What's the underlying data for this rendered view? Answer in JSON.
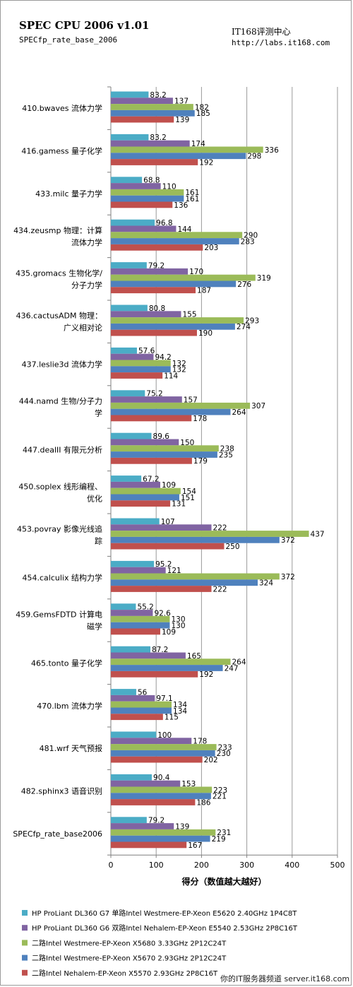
{
  "header": {
    "title": "SPEC CPU 2006 v1.01",
    "subtitle": "SPECfp_rate_base_2006",
    "source_line1": "IT168评测中心",
    "source_line2": "http://labs.it168.com"
  },
  "watermark": "你的IT服务器频道 server.it168.com",
  "colors": {
    "series": [
      "#4bacc6",
      "#8064a2",
      "#9bbb59",
      "#4f81bd",
      "#c0504d"
    ],
    "grid": "#9a9a9a",
    "axis": "#7f7f7f"
  },
  "chart_data": {
    "type": "bar",
    "orientation": "horizontal",
    "xlabel": "得分（数值越大越好）",
    "xlim": [
      0,
      500
    ],
    "xticks": [
      0,
      100,
      200,
      300,
      400,
      500
    ],
    "grid": true,
    "legend_position": "bottom",
    "categories": [
      "410.bwaves 流体力学",
      "416.gamess 量子化学",
      "433.milc 量子力学",
      "434.zeusmp 物理：计算流体力学",
      "435.gromacs 生物化学/分子力学",
      "436.cactusADM 物理：广义相对论",
      "437.leslie3d 流体力学",
      "444.namd 生物/分子力学",
      "447.dealII 有限元分析",
      "450.soplex 线形编程、优化",
      "453.povray 影像光线追踪",
      "454.calculix 结构力学",
      "459.GemsFDTD 计算电磁学",
      "465.tonto 量子化学",
      "470.lbm 流体力学",
      "481.wrf 天气预报",
      "482.sphinx3 语音识别",
      "SPECfp_rate_base2006"
    ],
    "category_lines": [
      [
        "410.bwaves 流体力学"
      ],
      [
        "416.gamess 量子化学"
      ],
      [
        "433.milc 量子力学"
      ],
      [
        "434.zeusmp 物理：计算",
        "流体力学"
      ],
      [
        "435.gromacs 生物化学/",
        "分子力学"
      ],
      [
        "436.cactusADM 物理：",
        "广义相对论"
      ],
      [
        "437.leslie3d 流体力学"
      ],
      [
        "444.namd 生物/分子力",
        "学"
      ],
      [
        "447.dealII 有限元分析"
      ],
      [
        "450.soplex 线形编程、",
        "优化"
      ],
      [
        "453.povray 影像光线追",
        "踪"
      ],
      [
        "454.calculix 结构力学"
      ],
      [
        "459.GemsFDTD 计算电",
        "磁学"
      ],
      [
        "465.tonto 量子化学"
      ],
      [
        "470.lbm 流体力学"
      ],
      [
        "481.wrf 天气预报"
      ],
      [
        "482.sphinx3 语音识别"
      ],
      [
        "SPECfp_rate_base2006"
      ]
    ],
    "series": [
      {
        "name": "HP ProLiant DL360 G7 单路Intel Westmere-EP-Xeon  E5620 2.40GHz 1P4C8T",
        "values": [
          83.2,
          83.2,
          68.8,
          96.8,
          79.2,
          80.8,
          57.6,
          75.2,
          89.6,
          67.2,
          107,
          95.2,
          55.2,
          87.2,
          56,
          100,
          90.4,
          79.2
        ],
        "labels": [
          "83.2",
          "83.2",
          "68.8",
          "96.8",
          "79.2",
          "80.8",
          "57.6",
          "75.2",
          "89.6",
          "67.2",
          "107",
          "95.2",
          "55.2",
          "87.2",
          "56",
          "100",
          "90.4",
          "79.2"
        ]
      },
      {
        "name": "HP ProLiant DL360 G6 双路Intel Nehalem-EP-Xeon  E5540 2.53GHz 2P8C16T",
        "values": [
          137,
          174,
          110,
          144,
          170,
          155,
          94.2,
          157,
          150,
          109,
          222,
          121,
          92.6,
          165,
          97.1,
          178,
          153,
          139
        ],
        "labels": [
          "137",
          "174",
          "110",
          "144",
          "170",
          "155",
          "94.2",
          "157",
          "150",
          "109",
          "222",
          "121",
          "92.6",
          "165",
          "97.1",
          "178",
          "153",
          "139"
        ]
      },
      {
        "name": "二路Intel Westmere-EP-Xeon  X5680 3.33GHz 2P12C24T",
        "values": [
          182,
          336,
          161,
          290,
          319,
          293,
          132,
          307,
          238,
          154,
          437,
          372,
          130,
          264,
          134,
          233,
          223,
          231
        ],
        "labels": [
          "182",
          "336",
          "161",
          "290",
          "319",
          "293",
          "132",
          "307",
          "238",
          "154",
          "437",
          "372",
          "130",
          "264",
          "134",
          "233",
          "223",
          "231"
        ]
      },
      {
        "name": "二路Intel Westmere-EP-Xeon  X5670 2.93GHz 2P12C24T",
        "values": [
          185,
          298,
          161,
          283,
          276,
          274,
          132,
          264,
          235,
          151,
          372,
          324,
          130,
          247,
          134,
          230,
          221,
          219
        ],
        "labels": [
          "185",
          "298",
          "161",
          "283",
          "276",
          "274",
          "132",
          "264",
          "235",
          "151",
          "372",
          "324",
          "130",
          "247",
          "134",
          "230",
          "221",
          "219"
        ]
      },
      {
        "name": "二路Intel Nehalem-EP-Xeon  X5570 2.93GHz 2P8C16T",
        "values": [
          139,
          192,
          136,
          203,
          187,
          190,
          114,
          178,
          179,
          131,
          250,
          222,
          109,
          192,
          115,
          202,
          186,
          167
        ],
        "labels": [
          "139",
          "192",
          "136",
          "203",
          "187",
          "190",
          "114",
          "178",
          "179",
          "131",
          "250",
          "222",
          "109",
          "192",
          "115",
          "202",
          "186",
          "167"
        ]
      }
    ]
  }
}
